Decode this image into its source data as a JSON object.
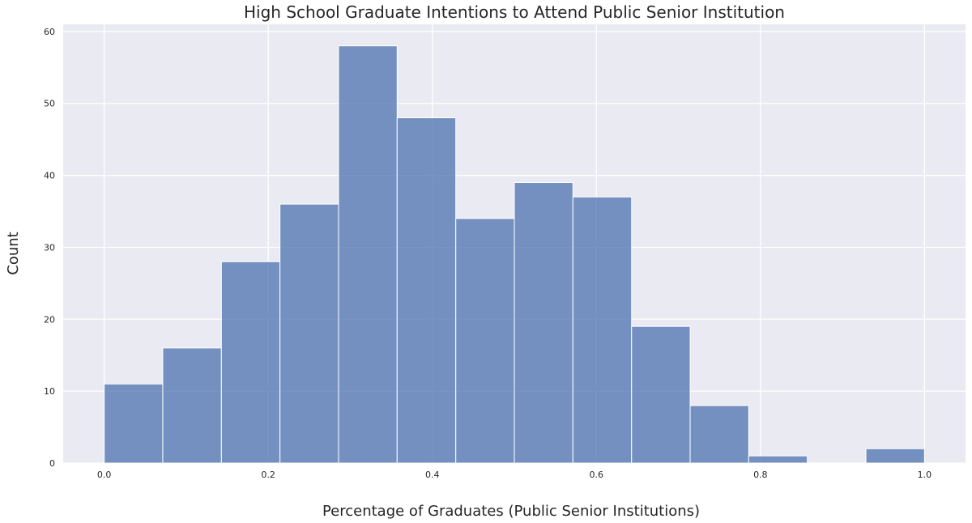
{
  "chart_data": {
    "type": "bar",
    "title": "High School Graduate Intentions to Attend Public Senior Institution",
    "xlabel": "Percentage of Graduates (Public Senior Institutions)",
    "ylabel": "Count",
    "xlim": [
      -0.05,
      1.05
    ],
    "ylim": [
      0,
      61
    ],
    "xticks": [
      0.0,
      0.2,
      0.4,
      0.6,
      0.8,
      1.0
    ],
    "xtick_labels": [
      "0.0",
      "0.2",
      "0.4",
      "0.6",
      "0.8",
      "1.0"
    ],
    "yticks": [
      0,
      10,
      20,
      30,
      40,
      50,
      60
    ],
    "ytick_labels": [
      "0",
      "10",
      "20",
      "30",
      "40",
      "50",
      "60"
    ],
    "bin_edges": [
      0.0,
      0.0714,
      0.1429,
      0.2143,
      0.2857,
      0.3571,
      0.4286,
      0.5,
      0.5714,
      0.6429,
      0.7143,
      0.7857,
      0.8571,
      0.9286,
      1.0
    ],
    "values": [
      11,
      16,
      28,
      36,
      58,
      48,
      34,
      39,
      37,
      19,
      8,
      1,
      0,
      2
    ],
    "grid": true,
    "colors": {
      "bar": "#4c72b0",
      "background": "#eaeaf2",
      "grid": "#ffffff"
    }
  }
}
